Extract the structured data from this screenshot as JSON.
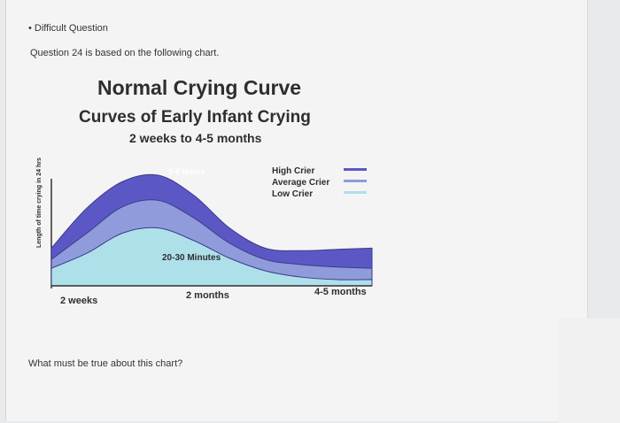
{
  "header": {
    "difficult_label": "Difficult Question"
  },
  "question": {
    "intro": "Question 24 is based on the following chart.",
    "prompt": "What must be true about this chart?"
  },
  "chart_data": {
    "type": "area",
    "title": "Normal Crying Curve",
    "subtitle": "Curves of Early Infant Crying",
    "subtitle2": "2 weeks to 4-5 months",
    "ylabel": "Length of time crying in 24 hrs",
    "x_tick_labels": [
      "2 weeks",
      "2 months",
      "4-5 months"
    ],
    "x": [
      0,
      0.5,
      1,
      1.5,
      2,
      2.5,
      3,
      3.5,
      4,
      4.5
    ],
    "series": [
      {
        "name": "High Crier",
        "color": "#5b58c6",
        "values": [
          0.3,
          0.62,
          0.83,
          0.88,
          0.72,
          0.46,
          0.3,
          0.28,
          0.29,
          0.3
        ]
      },
      {
        "name": "Average Crier",
        "color": "#8f9bdb",
        "values": [
          0.21,
          0.42,
          0.63,
          0.68,
          0.54,
          0.34,
          0.21,
          0.17,
          0.15,
          0.14
        ]
      },
      {
        "name": "Low Crier",
        "color": "#aee0ea",
        "values": [
          0.14,
          0.26,
          0.42,
          0.46,
          0.36,
          0.22,
          0.12,
          0.07,
          0.05,
          0.05
        ]
      }
    ],
    "annotations": [
      "5-6 Hours",
      "20-30 Minutes"
    ]
  }
}
